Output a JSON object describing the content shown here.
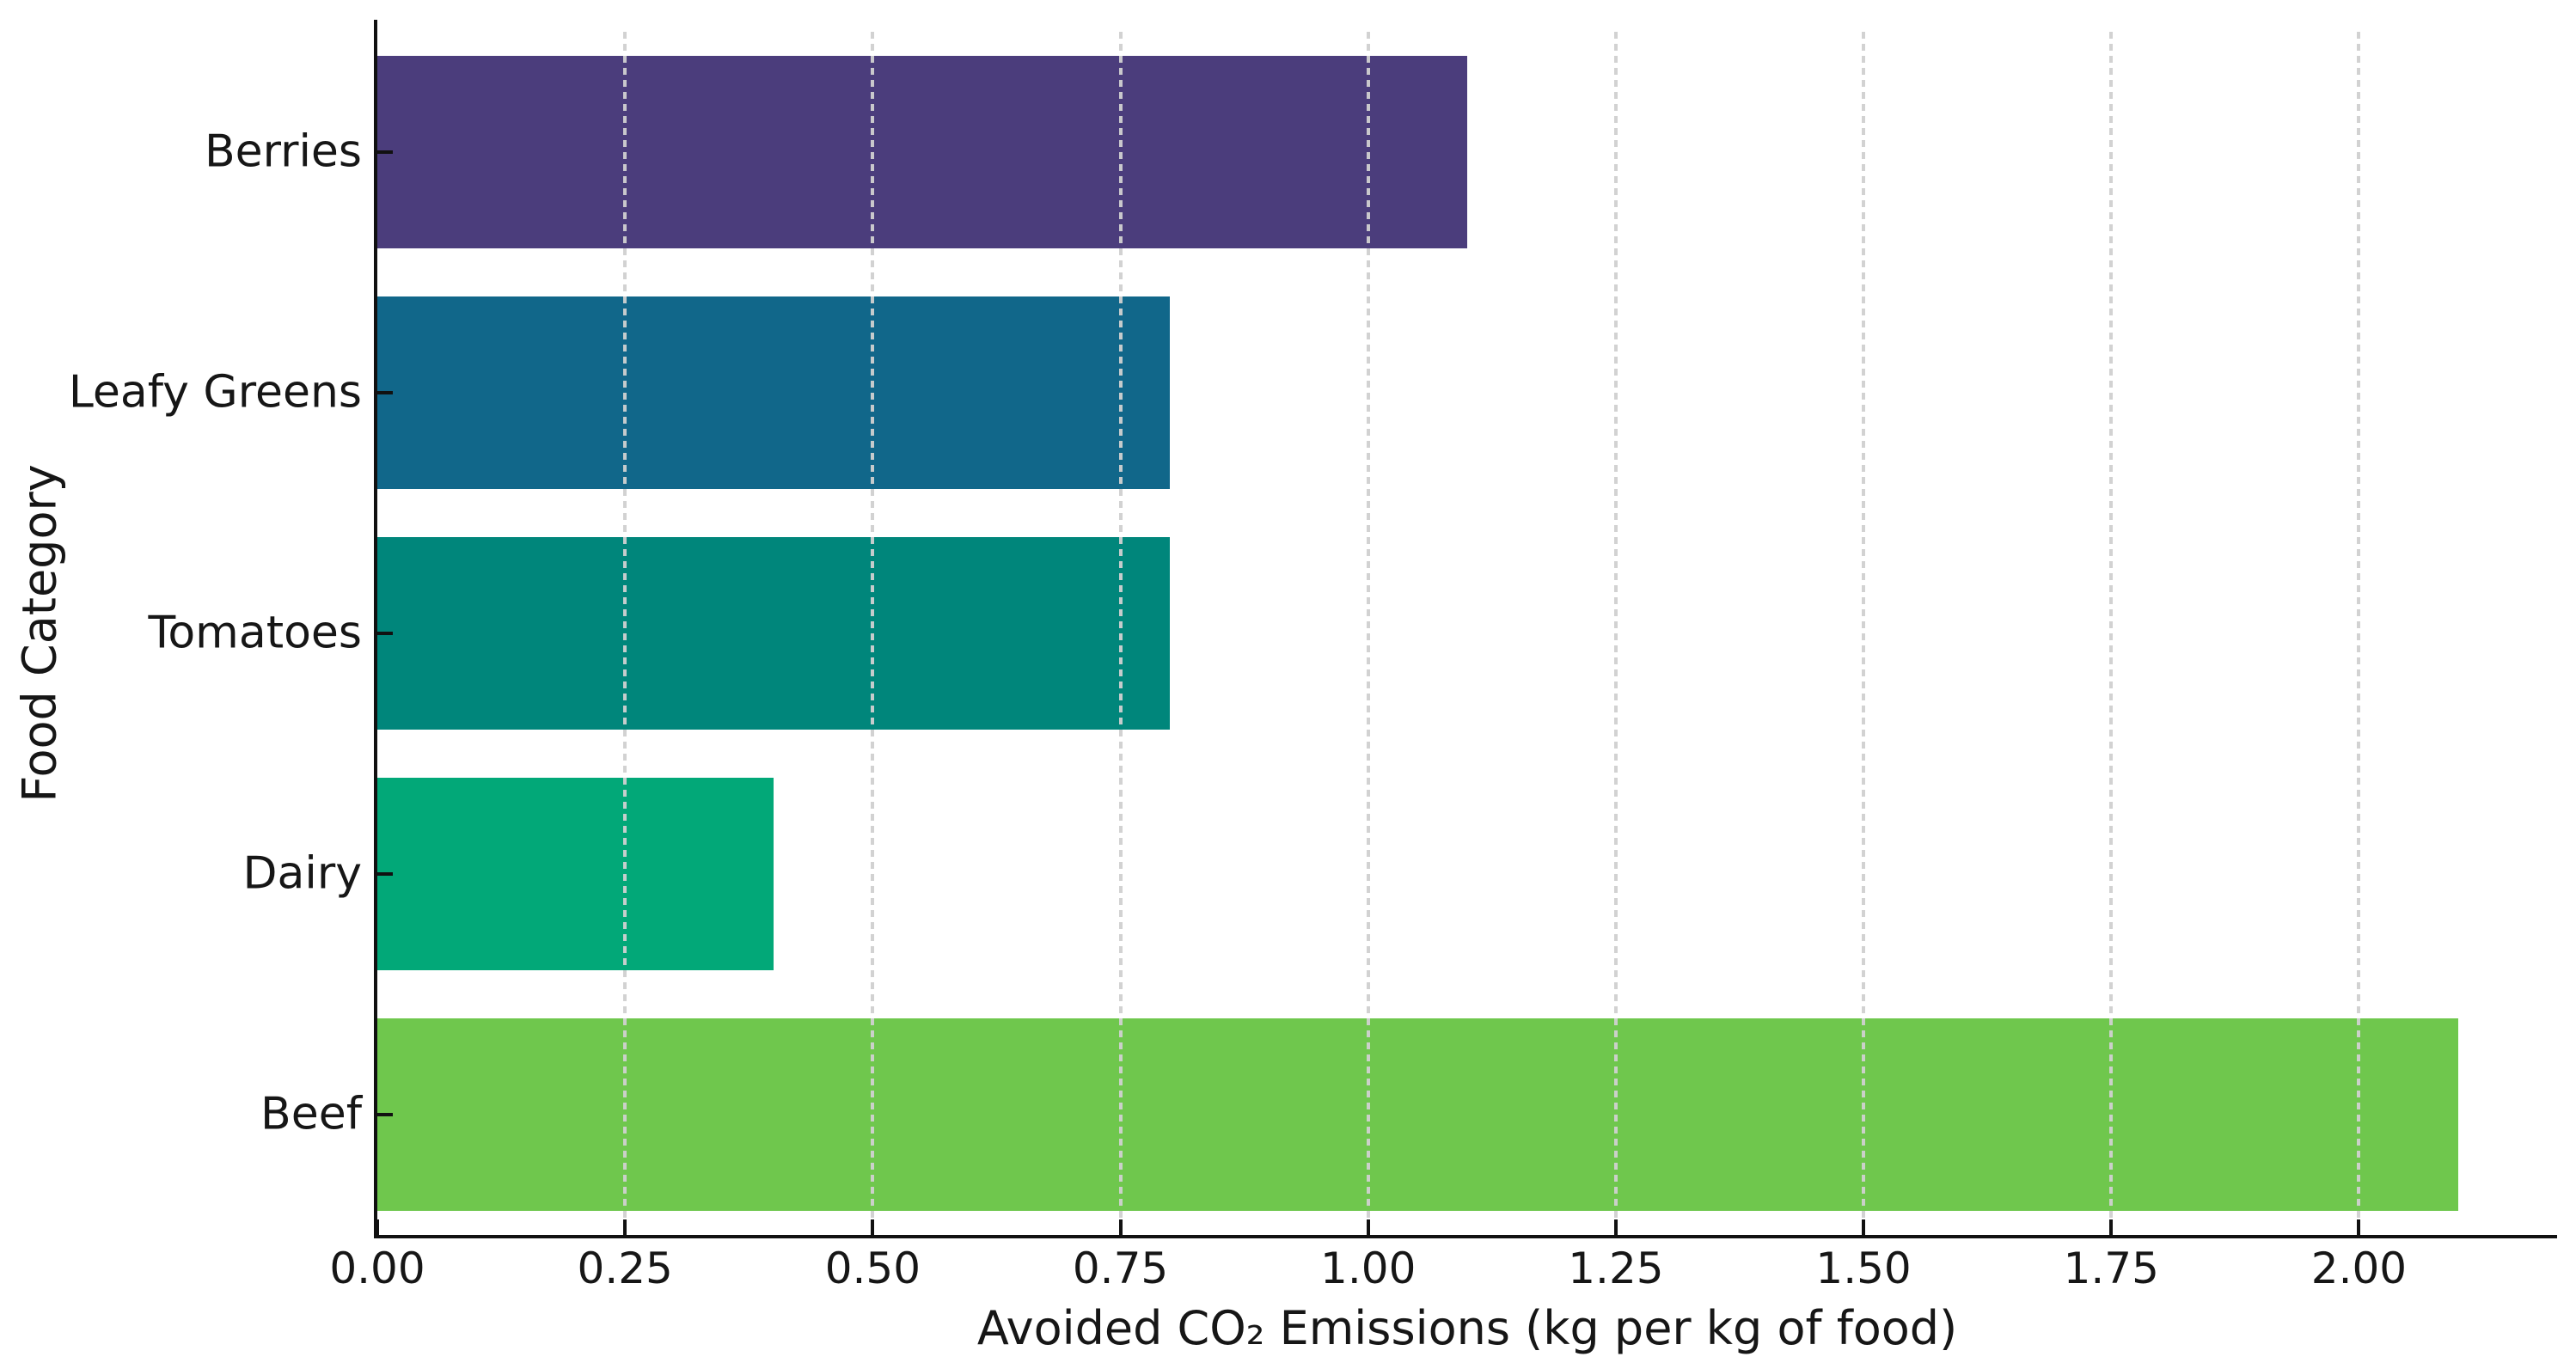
{
  "chart_data": {
    "type": "bar",
    "orientation": "horizontal",
    "title": "",
    "xlabel": "Avoided CO₂ Emissions (kg per kg of food)",
    "ylabel": "Food Category",
    "categories": [
      "Berries",
      "Leafy Greens",
      "Tomatoes",
      "Dairy",
      "Beef"
    ],
    "values": [
      1.1,
      0.8,
      0.8,
      0.4,
      2.1
    ],
    "bar_colors": [
      "#4B3D7C",
      "#11678A",
      "#00867B",
      "#02A878",
      "#6FC74D"
    ],
    "xlim": [
      0,
      2.2
    ],
    "xticks": [
      0,
      0.25,
      0.5,
      0.75,
      1.0,
      1.25,
      1.5,
      1.75,
      2.0
    ],
    "xtick_labels": [
      "0.00",
      "0.25",
      "0.50",
      "0.75",
      "1.00",
      "1.25",
      "1.50",
      "1.75",
      "2.00"
    ],
    "grid": "vertical-dashed-over-bars",
    "grid_color": "#d0d0d0",
    "axis_color": "#111111",
    "text_color": "#161616",
    "background_color": "#ffffff",
    "legend": "none"
  }
}
